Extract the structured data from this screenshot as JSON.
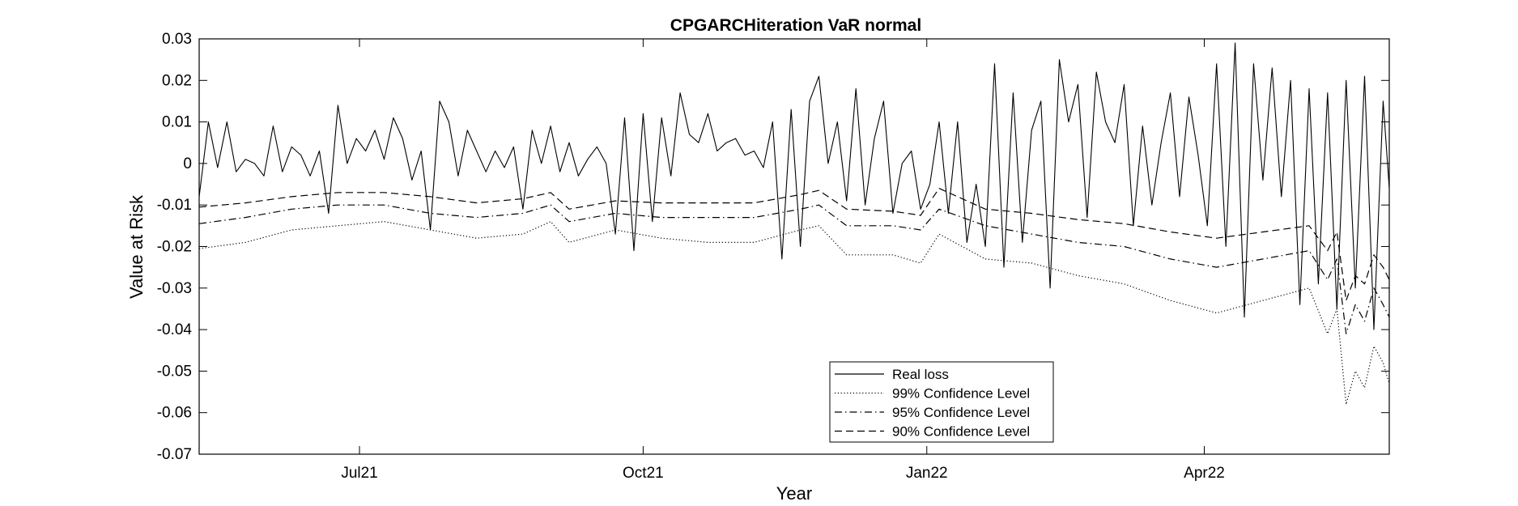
{
  "chart_data": {
    "type": "line",
    "title": "CPGARCHiteration VaR normal",
    "xlabel": "Year",
    "ylabel": "Value at Risk",
    "ylim": [
      -0.07,
      0.03
    ],
    "yticks": [
      -0.07,
      -0.06,
      -0.05,
      -0.04,
      -0.03,
      -0.02,
      -0.01,
      0,
      0.01,
      0.02,
      0.03
    ],
    "ytick_labels": [
      "-0.07",
      "-0.06",
      "-0.05",
      "-0.04",
      "-0.03",
      "-0.02",
      "-0.01",
      "0",
      "0.01",
      "0.02",
      "0.03"
    ],
    "xlim": [
      "2021-05-10",
      "2022-05-31"
    ],
    "xticks": [
      "2021-07-01",
      "2021-10-01",
      "2022-01-01",
      "2022-04-01"
    ],
    "xtick_labels": [
      "Jul21",
      "Oct21",
      "Jan22",
      "Apr22"
    ],
    "grid": false,
    "legend_position": "bottom-center",
    "series": [
      {
        "name": "Real loss",
        "dash": "solid",
        "x": [
          "2021-05-10",
          "2021-05-13",
          "2021-05-16",
          "2021-05-19",
          "2021-05-22",
          "2021-05-25",
          "2021-05-28",
          "2021-05-31",
          "2021-06-03",
          "2021-06-06",
          "2021-06-09",
          "2021-06-12",
          "2021-06-15",
          "2021-06-18",
          "2021-06-21",
          "2021-06-24",
          "2021-06-27",
          "2021-06-30",
          "2021-07-03",
          "2021-07-06",
          "2021-07-09",
          "2021-07-12",
          "2021-07-15",
          "2021-07-18",
          "2021-07-21",
          "2021-07-24",
          "2021-07-27",
          "2021-07-30",
          "2021-08-02",
          "2021-08-05",
          "2021-08-08",
          "2021-08-11",
          "2021-08-14",
          "2021-08-17",
          "2021-08-20",
          "2021-08-23",
          "2021-08-26",
          "2021-08-29",
          "2021-09-01",
          "2021-09-04",
          "2021-09-07",
          "2021-09-10",
          "2021-09-13",
          "2021-09-16",
          "2021-09-19",
          "2021-09-22",
          "2021-09-25",
          "2021-09-28",
          "2021-10-01",
          "2021-10-04",
          "2021-10-07",
          "2021-10-10",
          "2021-10-13",
          "2021-10-16",
          "2021-10-19",
          "2021-10-22",
          "2021-10-25",
          "2021-10-28",
          "2021-10-31",
          "2021-11-03",
          "2021-11-06",
          "2021-11-09",
          "2021-11-12",
          "2021-11-15",
          "2021-11-18",
          "2021-11-21",
          "2021-11-24",
          "2021-11-27",
          "2021-11-30",
          "2021-12-03",
          "2021-12-06",
          "2021-12-09",
          "2021-12-12",
          "2021-12-15",
          "2021-12-18",
          "2021-12-21",
          "2021-12-24",
          "2021-12-27",
          "2021-12-30",
          "2022-01-02",
          "2022-01-05",
          "2022-01-08",
          "2022-01-11",
          "2022-01-14",
          "2022-01-17",
          "2022-01-20",
          "2022-01-23",
          "2022-01-26",
          "2022-01-29",
          "2022-02-01",
          "2022-02-04",
          "2022-02-07",
          "2022-02-10",
          "2022-02-13",
          "2022-02-16",
          "2022-02-19",
          "2022-02-22",
          "2022-02-25",
          "2022-02-28",
          "2022-03-03",
          "2022-03-06",
          "2022-03-09",
          "2022-03-12",
          "2022-03-15",
          "2022-03-18",
          "2022-03-21",
          "2022-03-24",
          "2022-03-27",
          "2022-03-30",
          "2022-04-02",
          "2022-04-05",
          "2022-04-08",
          "2022-04-11",
          "2022-04-14",
          "2022-04-17",
          "2022-04-20",
          "2022-04-23",
          "2022-04-26",
          "2022-04-29",
          "2022-05-02",
          "2022-05-05",
          "2022-05-08",
          "2022-05-11",
          "2022-05-14",
          "2022-05-17",
          "2022-05-20",
          "2022-05-23",
          "2022-05-26",
          "2022-05-29",
          "2022-05-31"
        ],
        "y": [
          -0.008,
          0.01,
          -0.001,
          0.01,
          -0.002,
          0.001,
          0.0,
          -0.003,
          0.009,
          -0.002,
          0.004,
          0.002,
          -0.003,
          0.003,
          -0.012,
          0.014,
          0.0,
          0.006,
          0.003,
          0.008,
          0.001,
          0.011,
          0.006,
          -0.004,
          0.003,
          -0.016,
          0.015,
          0.01,
          -0.003,
          0.008,
          0.003,
          -0.002,
          0.003,
          -0.001,
          0.004,
          -0.011,
          0.008,
          0.0,
          0.009,
          -0.002,
          0.005,
          -0.003,
          0.001,
          0.004,
          0.0,
          -0.017,
          0.011,
          -0.021,
          0.012,
          -0.014,
          0.011,
          -0.003,
          0.017,
          0.007,
          0.005,
          0.012,
          0.003,
          0.005,
          0.006,
          0.002,
          0.003,
          -0.001,
          0.01,
          -0.023,
          0.013,
          -0.02,
          0.015,
          0.021,
          0.0,
          0.01,
          -0.009,
          0.018,
          -0.01,
          0.006,
          0.015,
          -0.012,
          0.0,
          0.003,
          -0.011,
          -0.005,
          0.01,
          -0.012,
          0.01,
          -0.019,
          -0.005,
          -0.02,
          0.024,
          -0.025,
          0.017,
          -0.019,
          0.008,
          0.015,
          -0.03,
          0.025,
          0.01,
          0.019,
          -0.013,
          0.022,
          0.01,
          0.005,
          0.019,
          -0.015,
          0.009,
          -0.01,
          0.005,
          0.017,
          -0.008,
          0.016,
          0.002,
          -0.015,
          0.024,
          -0.02,
          0.029,
          -0.037,
          0.024,
          -0.004,
          0.023,
          -0.008,
          0.02,
          -0.034,
          0.018,
          -0.029,
          0.017,
          -0.035,
          0.02,
          -0.03,
          0.021,
          -0.04,
          0.015,
          -0.006
        ]
      },
      {
        "name": "99% Confidence Level",
        "dash": "dotted",
        "x": [
          "2021-05-10",
          "2021-05-25",
          "2021-06-09",
          "2021-06-24",
          "2021-07-09",
          "2021-07-24",
          "2021-08-08",
          "2021-08-23",
          "2021-09-01",
          "2021-09-07",
          "2021-09-22",
          "2021-10-07",
          "2021-10-22",
          "2021-11-06",
          "2021-11-21",
          "2021-11-27",
          "2021-12-06",
          "2021-12-21",
          "2021-12-30",
          "2022-01-05",
          "2022-01-20",
          "2022-02-04",
          "2022-02-19",
          "2022-03-06",
          "2022-03-21",
          "2022-04-05",
          "2022-04-20",
          "2022-05-05",
          "2022-05-11",
          "2022-05-14",
          "2022-05-17",
          "2022-05-20",
          "2022-05-23",
          "2022-05-26",
          "2022-05-29",
          "2022-05-31"
        ],
        "y": [
          -0.0205,
          -0.019,
          -0.016,
          -0.015,
          -0.014,
          -0.016,
          -0.018,
          -0.017,
          -0.014,
          -0.019,
          -0.016,
          -0.018,
          -0.019,
          -0.019,
          -0.016,
          -0.015,
          -0.022,
          -0.022,
          -0.024,
          -0.017,
          -0.023,
          -0.024,
          -0.027,
          -0.029,
          -0.033,
          -0.036,
          -0.033,
          -0.03,
          -0.041,
          -0.035,
          -0.058,
          -0.05,
          -0.054,
          -0.044,
          -0.048,
          -0.053
        ]
      },
      {
        "name": "95% Confidence Level",
        "dash": "dashdot",
        "x": [
          "2021-05-10",
          "2021-05-25",
          "2021-06-09",
          "2021-06-24",
          "2021-07-09",
          "2021-07-24",
          "2021-08-08",
          "2021-08-23",
          "2021-09-01",
          "2021-09-07",
          "2021-09-22",
          "2021-10-07",
          "2021-10-22",
          "2021-11-06",
          "2021-11-21",
          "2021-11-27",
          "2021-12-06",
          "2021-12-21",
          "2021-12-30",
          "2022-01-05",
          "2022-01-20",
          "2022-02-04",
          "2022-02-19",
          "2022-03-06",
          "2022-03-21",
          "2022-04-05",
          "2022-04-20",
          "2022-05-05",
          "2022-05-11",
          "2022-05-14",
          "2022-05-17",
          "2022-05-20",
          "2022-05-23",
          "2022-05-26",
          "2022-05-29",
          "2022-05-31"
        ],
        "y": [
          -0.0145,
          -0.013,
          -0.011,
          -0.01,
          -0.01,
          -0.012,
          -0.013,
          -0.012,
          -0.01,
          -0.014,
          -0.012,
          -0.013,
          -0.013,
          -0.013,
          -0.011,
          -0.01,
          -0.015,
          -0.015,
          -0.016,
          -0.011,
          -0.015,
          -0.017,
          -0.019,
          -0.02,
          -0.023,
          -0.025,
          -0.023,
          -0.021,
          -0.028,
          -0.023,
          -0.041,
          -0.034,
          -0.038,
          -0.03,
          -0.034,
          -0.037
        ]
      },
      {
        "name": "90% Confidence Level",
        "dash": "dashed",
        "x": [
          "2021-05-10",
          "2021-05-25",
          "2021-06-09",
          "2021-06-24",
          "2021-07-09",
          "2021-07-24",
          "2021-08-08",
          "2021-08-23",
          "2021-09-01",
          "2021-09-07",
          "2021-09-22",
          "2021-10-07",
          "2021-10-22",
          "2021-11-06",
          "2021-11-21",
          "2021-11-27",
          "2021-12-06",
          "2021-12-21",
          "2021-12-30",
          "2022-01-05",
          "2022-01-20",
          "2022-02-04",
          "2022-02-19",
          "2022-03-06",
          "2022-03-21",
          "2022-04-05",
          "2022-04-20",
          "2022-05-05",
          "2022-05-11",
          "2022-05-14",
          "2022-05-17",
          "2022-05-20",
          "2022-05-23",
          "2022-05-26",
          "2022-05-29",
          "2022-05-31"
        ],
        "y": [
          -0.0105,
          -0.0095,
          -0.008,
          -0.007,
          -0.007,
          -0.008,
          -0.0095,
          -0.0085,
          -0.007,
          -0.011,
          -0.009,
          -0.0095,
          -0.0095,
          -0.0095,
          -0.0075,
          -0.0065,
          -0.011,
          -0.0115,
          -0.0125,
          -0.006,
          -0.011,
          -0.012,
          -0.0135,
          -0.0145,
          -0.0165,
          -0.018,
          -0.0165,
          -0.015,
          -0.021,
          -0.0165,
          -0.033,
          -0.027,
          -0.029,
          -0.022,
          -0.025,
          -0.028
        ]
      }
    ]
  }
}
